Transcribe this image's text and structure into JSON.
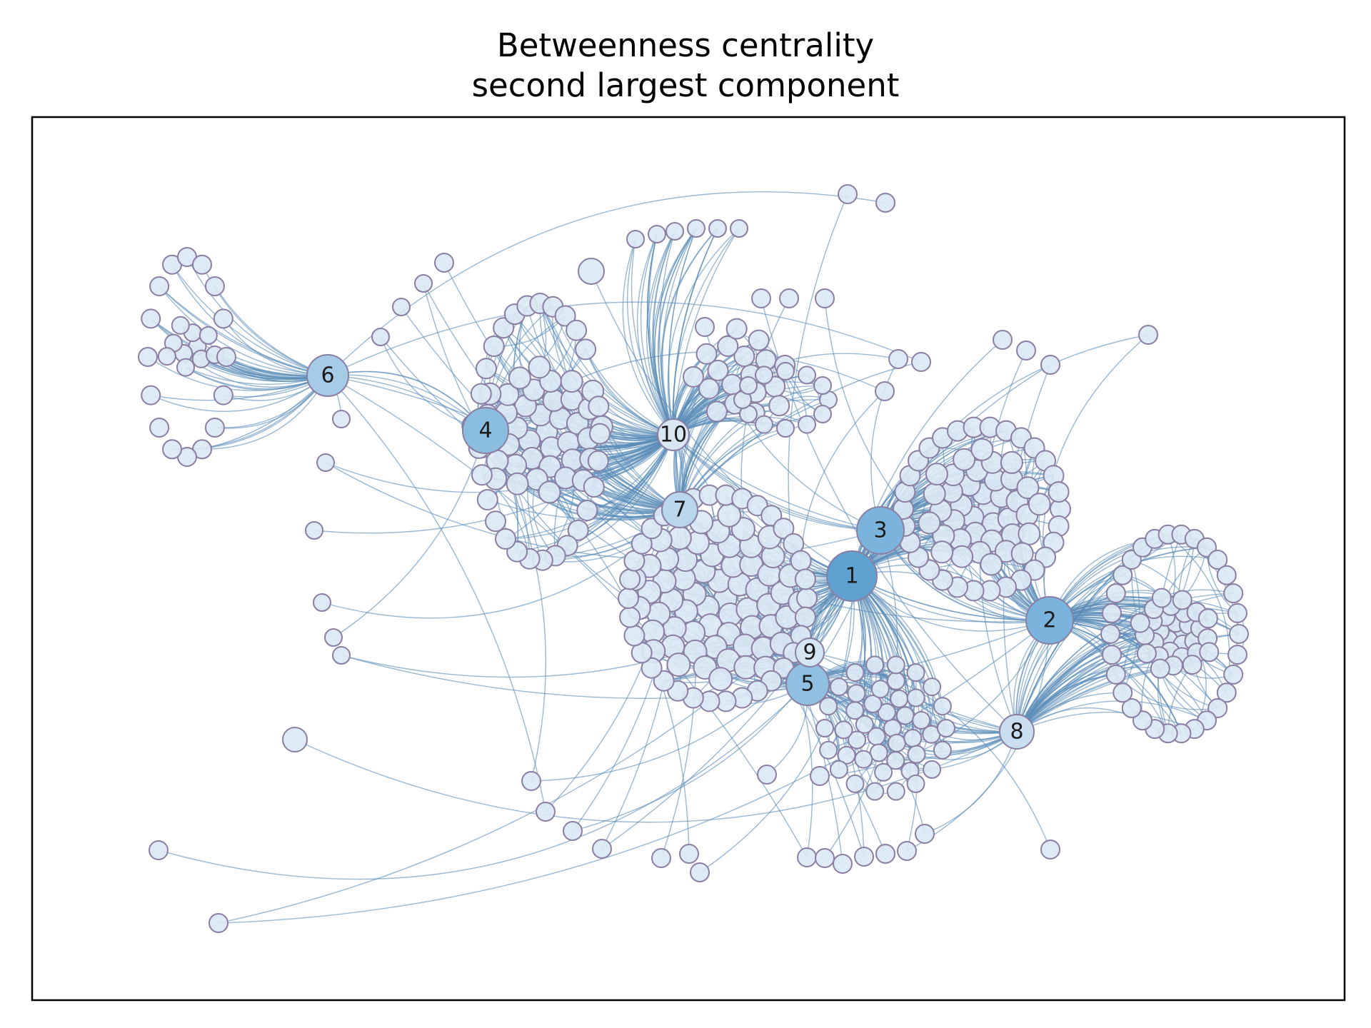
{
  "title": {
    "line1": "Betweenness centrality",
    "line2": "second largest component"
  },
  "colors": {
    "edge": "#5b8db8",
    "node_light": "#dbe8f4",
    "node_stroke": "#8a7fa3",
    "frame": "#000000"
  },
  "hub_nodes": [
    {
      "label": "1",
      "centrality_rank": 1
    },
    {
      "label": "2",
      "centrality_rank": 2
    },
    {
      "label": "3",
      "centrality_rank": 3
    },
    {
      "label": "4",
      "centrality_rank": 4
    },
    {
      "label": "5",
      "centrality_rank": 5
    },
    {
      "label": "6",
      "centrality_rank": 6
    },
    {
      "label": "7",
      "centrality_rank": 7
    },
    {
      "label": "8",
      "centrality_rank": 8
    },
    {
      "label": "9",
      "centrality_rank": 9
    },
    {
      "label": "10",
      "centrality_rank": 10
    }
  ]
}
